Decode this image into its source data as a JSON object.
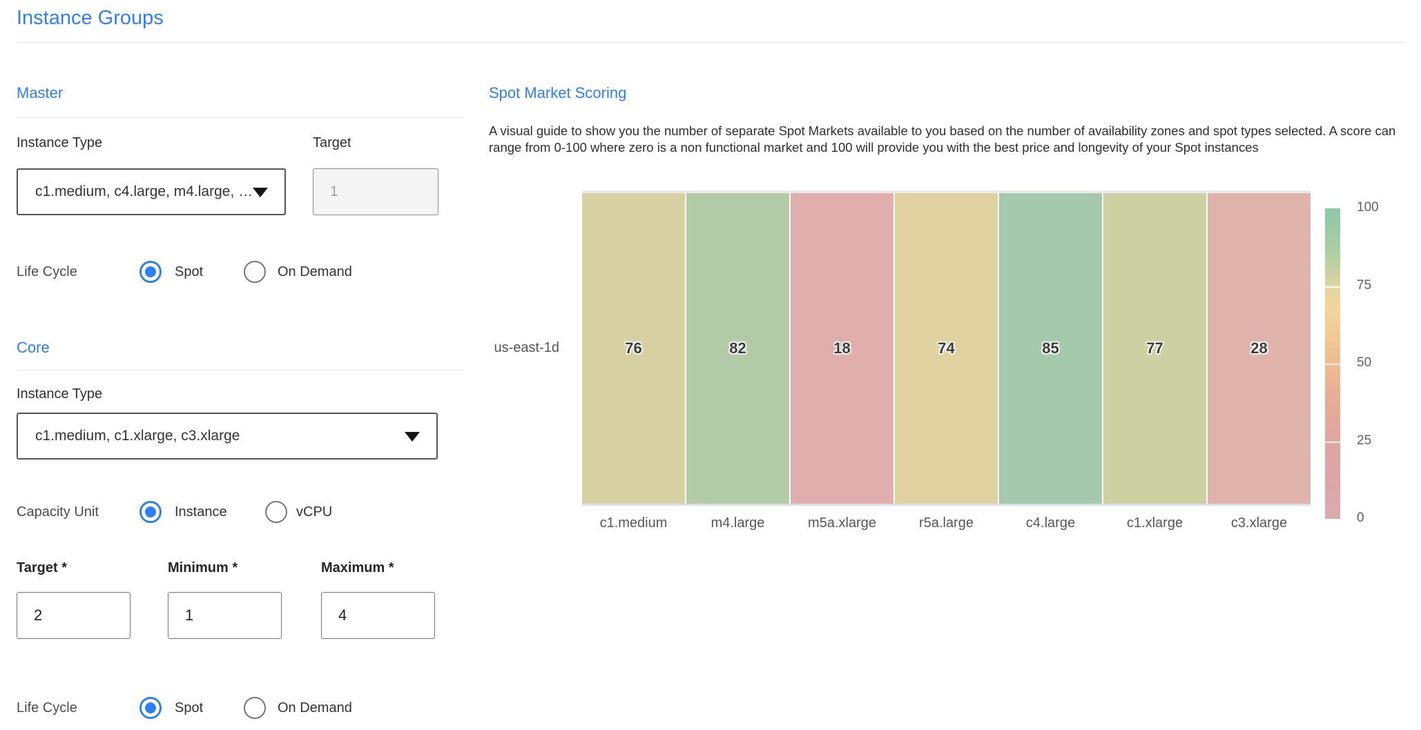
{
  "title": "Instance Groups",
  "accent_color": "#2d7ff2",
  "master": {
    "heading": "Master",
    "instance_type_label": "Instance Type",
    "instance_type_value": "c1.medium, c4.large, m4.large, …",
    "target_label": "Target",
    "target_value": "1",
    "life_cycle_label": "Life Cycle",
    "life_cycle_options": [
      "Spot",
      "On Demand"
    ],
    "life_cycle_selected": "Spot"
  },
  "core": {
    "heading": "Core",
    "instance_type_label": "Instance Type",
    "instance_type_value": "c1.medium, c1.xlarge, c3.xlarge",
    "capacity_unit_label": "Capacity Unit",
    "capacity_unit_options": [
      "Instance",
      "vCPU"
    ],
    "capacity_unit_selected": "Instance",
    "target_label": "Target *",
    "target_value": "2",
    "minimum_label": "Minimum *",
    "minimum_value": "1",
    "maximum_label": "Maximum *",
    "maximum_value": "4",
    "life_cycle_label": "Life Cycle",
    "life_cycle_options": [
      "Spot",
      "On Demand"
    ],
    "life_cycle_selected": "Spot"
  },
  "spot_market": {
    "heading": "Spot Market Scoring",
    "description": "A visual guide to show you the number of separate Spot Markets available to you based on the number of availability zones and spot types selected. A score can range from 0-100 where zero is a non functional market and 100 will provide you with the best price and longevity of your Spot instances"
  },
  "chart_data": {
    "type": "heatmap",
    "row_label": "us-east-1d",
    "categories": [
      "c1.medium",
      "m4.large",
      "m5a.xlarge",
      "r5a.large",
      "c4.large",
      "c1.xlarge",
      "c3.xlarge"
    ],
    "values": [
      76,
      82,
      18,
      74,
      85,
      77,
      28
    ],
    "cell_colors": [
      "#d6d0a2",
      "#b2cba6",
      "#e0afad",
      "#e0d2a0",
      "#a5c9ac",
      "#cdd0a0",
      "#dfb3ab"
    ],
    "value_range": [
      0,
      100
    ],
    "colorbar": {
      "ticks": [
        100,
        75,
        50,
        25,
        0
      ],
      "gradient": [
        "#8cc8a8 0%",
        "#a9cda4 13%",
        "#d5d3a2 23%",
        "#e4d7a1 26%",
        "#f4d49b 33%",
        "#f1c795 42%",
        "#edbc92 50%",
        "#e7ae97 60%",
        "#e1a69e 72%",
        "#dda5a4 82%",
        "#dcaaae 100%"
      ],
      "separator_positions_pct": [
        25,
        50,
        75
      ]
    }
  }
}
